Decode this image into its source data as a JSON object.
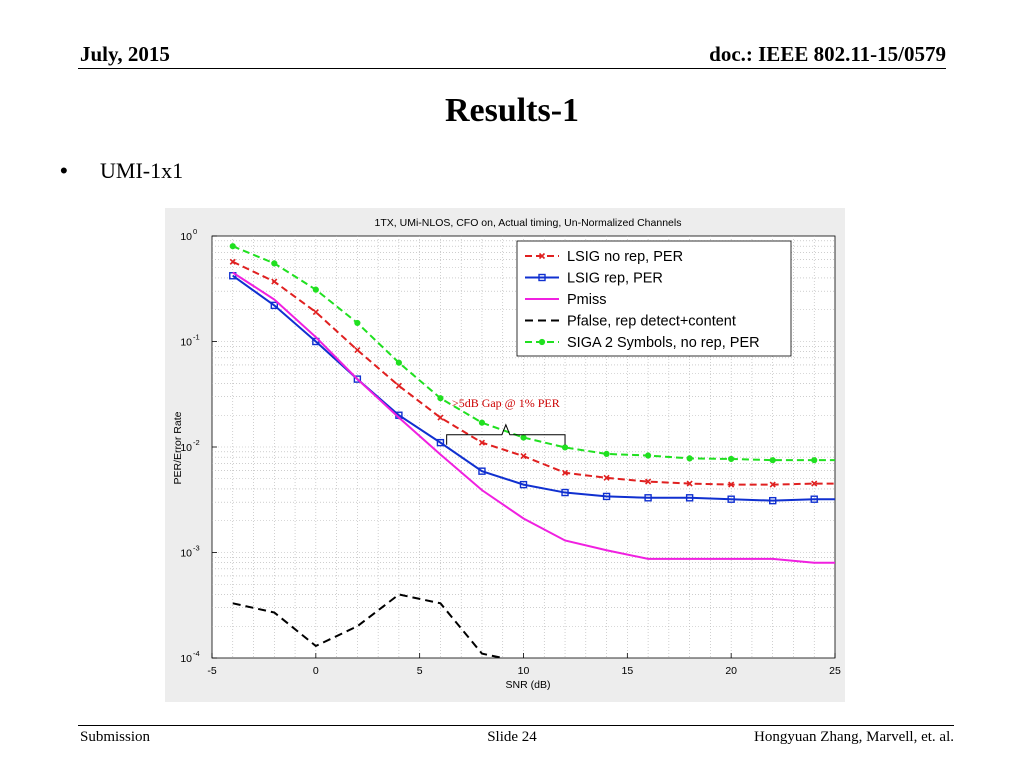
{
  "header": {
    "date": "July, 2015",
    "doc": "doc.: IEEE 802.11-15/0579"
  },
  "slide": {
    "title": "Results-1",
    "bullet": "UMI-1x1"
  },
  "footer": {
    "left": "Submission",
    "center": "Slide 24",
    "right": "Hongyuan Zhang,  Marvell, et. al."
  },
  "chart_data": {
    "type": "line",
    "title": "1TX, UMi-NLOS, CFO on, Actual timing, Un-Normalized Channels",
    "xlabel": "SNR (dB)",
    "ylabel": "PER/Error Rate",
    "xlim": [
      -5,
      25
    ],
    "ylim": [
      0.0001,
      1
    ],
    "yscale": "log",
    "grid": true,
    "x_ticks": [
      "-5",
      "0",
      "5",
      "10",
      "15",
      "20",
      "25"
    ],
    "x_tick_values": [
      -5,
      0,
      5,
      10,
      15,
      20,
      25
    ],
    "y_tick_exponents": [
      -4,
      -3,
      -2,
      -1,
      0
    ],
    "y_tick_base": "10",
    "legend_position": "top-right",
    "annotation": {
      "text": ">5dB Gap  @ 1% PER",
      "x_from": 6.3,
      "x_to": 12,
      "y": 0.0125,
      "color": "#cc0000"
    },
    "series": [
      {
        "name": "LSIG no rep, PER",
        "color": "#e02020",
        "dash": "7,4",
        "marker": "x",
        "x": [
          -4,
          -2,
          0,
          2,
          4,
          6,
          8,
          10,
          12,
          14,
          16,
          18,
          20,
          22,
          24,
          25
        ],
        "y": [
          0.57,
          0.37,
          0.19,
          0.083,
          0.038,
          0.019,
          0.011,
          0.0082,
          0.0057,
          0.0051,
          0.0047,
          0.0045,
          0.0044,
          0.0044,
          0.0045,
          0.0045
        ]
      },
      {
        "name": "LSIG rep, PER",
        "color": "#1030d0",
        "dash": "",
        "marker": "square",
        "x": [
          -4,
          -2,
          0,
          2,
          4,
          6,
          8,
          10,
          12,
          14,
          16,
          18,
          20,
          22,
          24,
          25
        ],
        "y": [
          0.42,
          0.22,
          0.1,
          0.044,
          0.02,
          0.011,
          0.0059,
          0.0044,
          0.0037,
          0.0034,
          0.0033,
          0.0033,
          0.0032,
          0.0031,
          0.0032,
          0.0032
        ]
      },
      {
        "name": "Pmiss",
        "color": "#f020e0",
        "dash": "",
        "marker": "none",
        "x": [
          -4,
          -2,
          0,
          2,
          4,
          6,
          8,
          10,
          12,
          14,
          16,
          18,
          20,
          22,
          24,
          25
        ],
        "y": [
          0.45,
          0.25,
          0.11,
          0.044,
          0.019,
          0.0085,
          0.0039,
          0.0021,
          0.0013,
          0.00105,
          0.00087,
          0.00087,
          0.00087,
          0.00087,
          0.0008,
          0.0008
        ]
      },
      {
        "name": "Pfalse, rep detect+content",
        "color": "#000000",
        "dash": "8,5",
        "marker": "none",
        "x": [
          -4,
          -2,
          0,
          2,
          4,
          6,
          8,
          9
        ],
        "y": [
          0.00033,
          0.00027,
          0.00013,
          0.0002,
          0.0004,
          0.00033,
          0.00011,
          0.0001
        ]
      },
      {
        "name": "SIGA 2 Symbols, no rep, PER",
        "color": "#20e020",
        "dash": "7,4",
        "marker": "dot",
        "x": [
          -4,
          -2,
          0,
          2,
          4,
          6,
          8,
          10,
          12,
          14,
          16,
          18,
          20,
          22,
          24,
          25
        ],
        "y": [
          0.8,
          0.55,
          0.31,
          0.15,
          0.063,
          0.029,
          0.017,
          0.0123,
          0.0099,
          0.0086,
          0.0083,
          0.0078,
          0.0077,
          0.0075,
          0.0075,
          0.0075
        ]
      }
    ]
  }
}
